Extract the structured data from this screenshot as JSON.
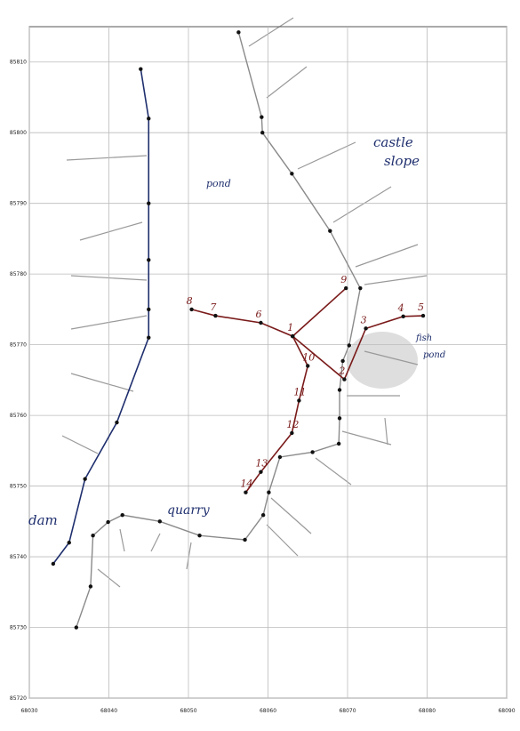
{
  "chart_data": {
    "type": "line",
    "xlim": [
      68030,
      68090
    ],
    "ylim": [
      85720,
      85815
    ],
    "xticks": [
      68030,
      68040,
      68050,
      68060,
      68070,
      68080,
      68090
    ],
    "yticks": [
      85720,
      85730,
      85740,
      85750,
      85760,
      85770,
      85780,
      85790,
      85800,
      85810
    ],
    "grid": true,
    "series": [
      {
        "color": "#1f2f6e",
        "x": [
          68044,
          68045,
          68045,
          68045,
          68045,
          68045,
          68041,
          68037,
          68035,
          68033
        ],
        "values": [
          85809,
          85802,
          85790,
          85782,
          85775,
          85771,
          85759,
          85751,
          85742,
          85739
        ]
      },
      {
        "color": "#8a8a8a",
        "x": [
          68056.3,
          68059.2,
          68059.3,
          68063,
          68067.8,
          68071.6,
          68070.2,
          68069.4,
          68069,
          68069,
          68068.9,
          68065.6,
          68061.5,
          68060.1,
          68059.4,
          68057.1,
          68051.4,
          68046.4,
          68041.7,
          68039.9,
          68038,
          68037.7,
          68035.9
        ],
        "values": [
          85814.2,
          85802.2,
          85800,
          85794.2,
          85786.1,
          85778,
          85769.9,
          85767.7,
          85763.6,
          85759.6,
          85756,
          85754.8,
          85754.1,
          85749.1,
          85745.9,
          85742.4,
          85743,
          85745,
          85745.9,
          85744.9,
          85743,
          85735.8,
          85730
        ]
      },
      {
        "color": "#7a1a1a",
        "x": [
          68050.4,
          68053.4,
          68059.1,
          68063.1,
          68069.6,
          68072.3,
          68077,
          68079.5
        ],
        "values": [
          85775,
          85774.1,
          85773.1,
          85771.2,
          85765.1,
          85772.3,
          85774,
          85774.1
        ],
        "point_labels": [
          "8",
          "7",
          "6",
          "1",
          "2",
          "3",
          "4",
          "5"
        ]
      },
      {
        "color": "#7a1a1a",
        "x": [
          68063.1,
          68069.8
        ],
        "values": [
          85771.2,
          85778
        ],
        "point_labels": [
          null,
          "9"
        ]
      },
      {
        "color": "#7a1a1a",
        "x": [
          68063.1,
          68065,
          68063.9,
          68063,
          68059.1,
          68057.2
        ],
        "values": [
          85771.2,
          85767,
          85762.1,
          85757.5,
          85752,
          85749.1
        ],
        "point_labels": [
          null,
          "10",
          "11",
          "12",
          "13",
          "14"
        ]
      }
    ],
    "annotations": [
      "castle",
      "slope",
      "pond",
      "fish",
      "pond",
      "dam",
      "quarry"
    ]
  }
}
